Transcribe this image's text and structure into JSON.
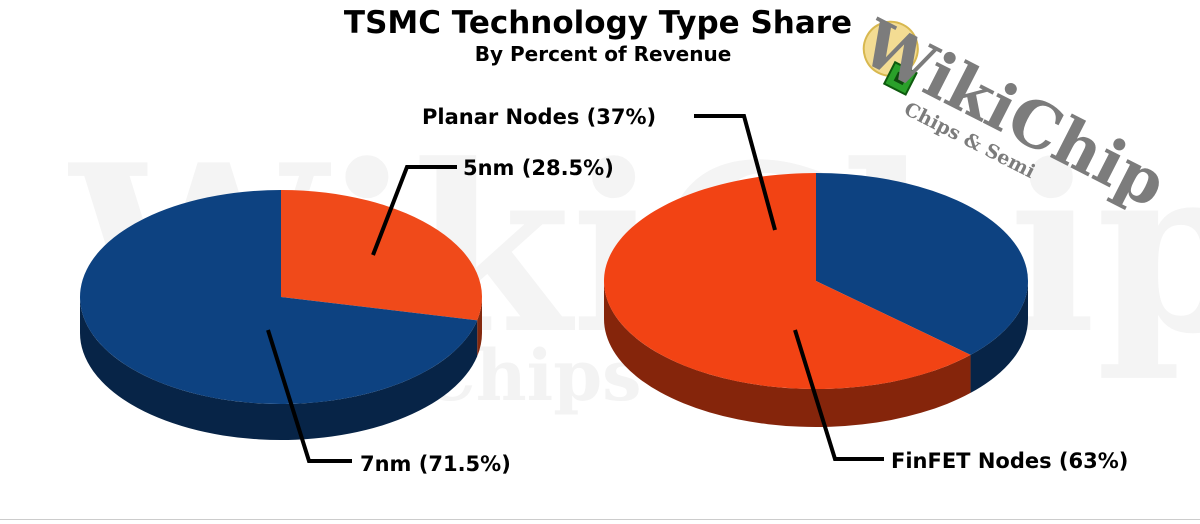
{
  "chart_data": [
    {
      "type": "pie",
      "title": "TSMC Technology Type Share",
      "subtitle": "By Percent of Revenue",
      "slices": [
        {
          "label": "5nm (28.5%)",
          "value": 28.5,
          "color": "#f04a1a"
        },
        {
          "label": "7nm (71.5%)",
          "value": 71.5,
          "color": "#0d4281"
        }
      ]
    },
    {
      "type": "pie",
      "slices": [
        {
          "label": "Planar Nodes (37%)",
          "value": 37,
          "color": "#0d4281"
        },
        {
          "label": "FinFET Nodes (63%)",
          "value": 63,
          "color": "#f24314"
        }
      ]
    }
  ],
  "logo": {
    "main": "WikiChip",
    "sub": "Chips & Semi"
  },
  "watermark": {
    "main": "WikiChip",
    "sub": "Chips & Semi"
  },
  "colors": {
    "blue_side": "#082a55",
    "orange_side": "#b3300f"
  }
}
